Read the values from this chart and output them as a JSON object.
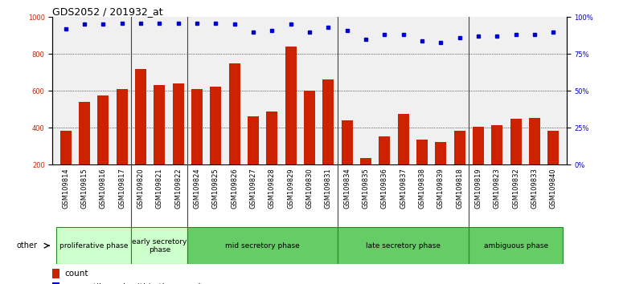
{
  "title": "GDS2052 / 201932_at",
  "samples": [
    "GSM109814",
    "GSM109815",
    "GSM109816",
    "GSM109817",
    "GSM109820",
    "GSM109821",
    "GSM109822",
    "GSM109824",
    "GSM109825",
    "GSM109826",
    "GSM109827",
    "GSM109828",
    "GSM109829",
    "GSM109830",
    "GSM109831",
    "GSM109834",
    "GSM109835",
    "GSM109836",
    "GSM109837",
    "GSM109838",
    "GSM109839",
    "GSM109818",
    "GSM109819",
    "GSM109823",
    "GSM109832",
    "GSM109833",
    "GSM109840"
  ],
  "counts": [
    385,
    540,
    575,
    610,
    720,
    630,
    640,
    610,
    625,
    750,
    460,
    490,
    840,
    600,
    660,
    440,
    235,
    355,
    475,
    335,
    325,
    385,
    405,
    415,
    450,
    455,
    385
  ],
  "percentiles": [
    92,
    95,
    95,
    96,
    96,
    96,
    96,
    96,
    96,
    95,
    90,
    91,
    95,
    90,
    93,
    91,
    85,
    88,
    88,
    84,
    83,
    86,
    87,
    87,
    88,
    88,
    90
  ],
  "phases": [
    {
      "label": "proliferative phase",
      "start": 0,
      "end": 4,
      "color": "#ccffcc"
    },
    {
      "label": "early secretory\nphase",
      "start": 4,
      "end": 7,
      "color": "#ccffcc"
    },
    {
      "label": "mid secretory phase",
      "start": 7,
      "end": 15,
      "color": "#66cc66"
    },
    {
      "label": "late secretory phase",
      "start": 15,
      "end": 22,
      "color": "#66cc66"
    },
    {
      "label": "ambiguous phase",
      "start": 22,
      "end": 27,
      "color": "#66cc66"
    }
  ],
  "bar_color": "#cc2200",
  "dot_color": "#0000cc",
  "ylim_left": [
    200,
    1000
  ],
  "ylim_right": [
    0,
    100
  ],
  "title_fontsize": 9,
  "tick_fontsize": 6,
  "phase_fontsize": 6.5,
  "legend_fontsize": 7.5
}
